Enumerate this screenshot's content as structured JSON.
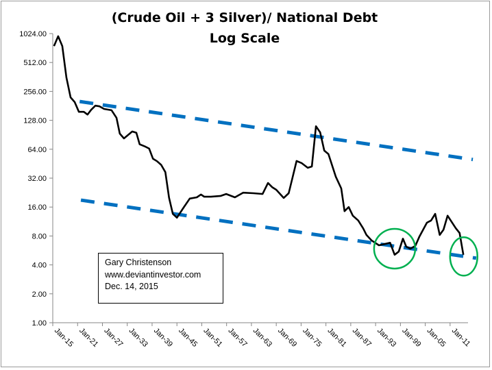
{
  "chart_data": {
    "type": "line",
    "title": "(Crude Oil + 3 Silver)/ National Debt",
    "subtitle": "Log Scale",
    "xlabel": "",
    "ylabel": "",
    "y_scale": "log2",
    "ylim": [
      1,
      1024
    ],
    "y_ticks": [
      "1.00",
      "2.00",
      "4.00",
      "8.00",
      "16.00",
      "32.00",
      "64.00",
      "128.00",
      "256.00",
      "512.00",
      "1024.00"
    ],
    "xlim": [
      1915,
      2016.5
    ],
    "x_ticks": [
      "Jan-15",
      "Jan-21",
      "Jan-27",
      "Jan-33",
      "Jan-39",
      "Jan-45",
      "Jan-51",
      "Jan-57",
      "Jan-63",
      "Jan-69",
      "Jan-75",
      "Jan-81",
      "Jan-87",
      "Jan-93",
      "Jan-99",
      "Jan-05",
      "Jan-11"
    ],
    "grid": false,
    "series": [
      {
        "color": "#000000",
        "x": [
          1915.3,
          1916.3,
          1917.3,
          1918.3,
          1919.3,
          1920.3,
          1921.3,
          1922.5,
          1923.4,
          1924.3,
          1925.3,
          1926.3,
          1927.4,
          1929.2,
          1930.4,
          1931.2,
          1932.2,
          1933.2,
          1934.2,
          1935.2,
          1936.0,
          1937.4,
          1938.3,
          1939.2,
          1940.2,
          1941.2,
          1942.2,
          1943.1,
          1944.0,
          1945.0,
          1946.6,
          1948.1,
          1949.8,
          1950.8,
          1951.6,
          1953.2,
          1955.6,
          1956.9,
          1959.0,
          1961.0,
          1963.5,
          1965.7,
          1967.0,
          1968.0,
          1969.0,
          1970.8,
          1972.0,
          1972.9,
          1973.9,
          1975.1,
          1976.6,
          1977.6,
          1978.6,
          1979.6,
          1980.6,
          1981.6,
          1983.4,
          1984.7,
          1985.5,
          1986.5,
          1987.5,
          1988.8,
          1990.0,
          1990.8,
          1992.0,
          1993.8,
          1996.5,
          1997.6,
          1998.6,
          1999.6,
          2000.4,
          2001.4,
          2002.6,
          2003.6,
          2005.4,
          2006.4,
          2007.4,
          2008.5,
          2009.4,
          2010.4,
          2012.4,
          2013.3,
          2014.2
        ],
        "y": [
          760,
          960,
          760,
          358,
          222,
          198,
          157,
          157,
          147,
          165,
          182,
          179,
          168,
          163,
          136,
          93,
          83,
          90,
          98,
          95,
          72,
          68,
          65,
          51,
          48,
          44,
          37,
          20,
          13.6,
          12.4,
          15.8,
          19.6,
          20.2,
          21.6,
          20.5,
          20.5,
          20.9,
          21.9,
          20.2,
          22.6,
          22.3,
          21.9,
          28.5,
          25.8,
          24.2,
          19.9,
          22.3,
          32,
          48.3,
          46,
          41,
          42.3,
          111,
          96,
          62,
          57,
          33,
          25,
          14.5,
          16,
          13,
          11.6,
          9.6,
          8.2,
          7.2,
          6.4,
          6.8,
          5.1,
          5.5,
          7.5,
          6.2,
          5.9,
          6.3,
          7.9,
          11,
          11.6,
          13.6,
          8.2,
          9.3,
          13,
          9.6,
          8.6,
          5.1
        ]
      }
    ],
    "trend_lines": [
      {
        "style": "dashed",
        "color": "#0070C0",
        "x": [
          1921.5,
          2016.5
        ],
        "y": [
          201,
          50
        ]
      },
      {
        "style": "dashed",
        "color": "#0070C0",
        "x": [
          1921.8,
          2017.3
        ],
        "y": [
          18.9,
          4.7
        ]
      }
    ],
    "highlight_circles": [
      {
        "color": "#00B050",
        "x": 1997.6,
        "y": 5.9
      },
      {
        "color": "#00B050",
        "x": 2014.3,
        "y": 4.9
      }
    ],
    "annotation": {
      "lines": [
        "Gary Christenson",
        "www.deviantinvestor.com",
        "Dec. 14, 2015"
      ]
    }
  }
}
